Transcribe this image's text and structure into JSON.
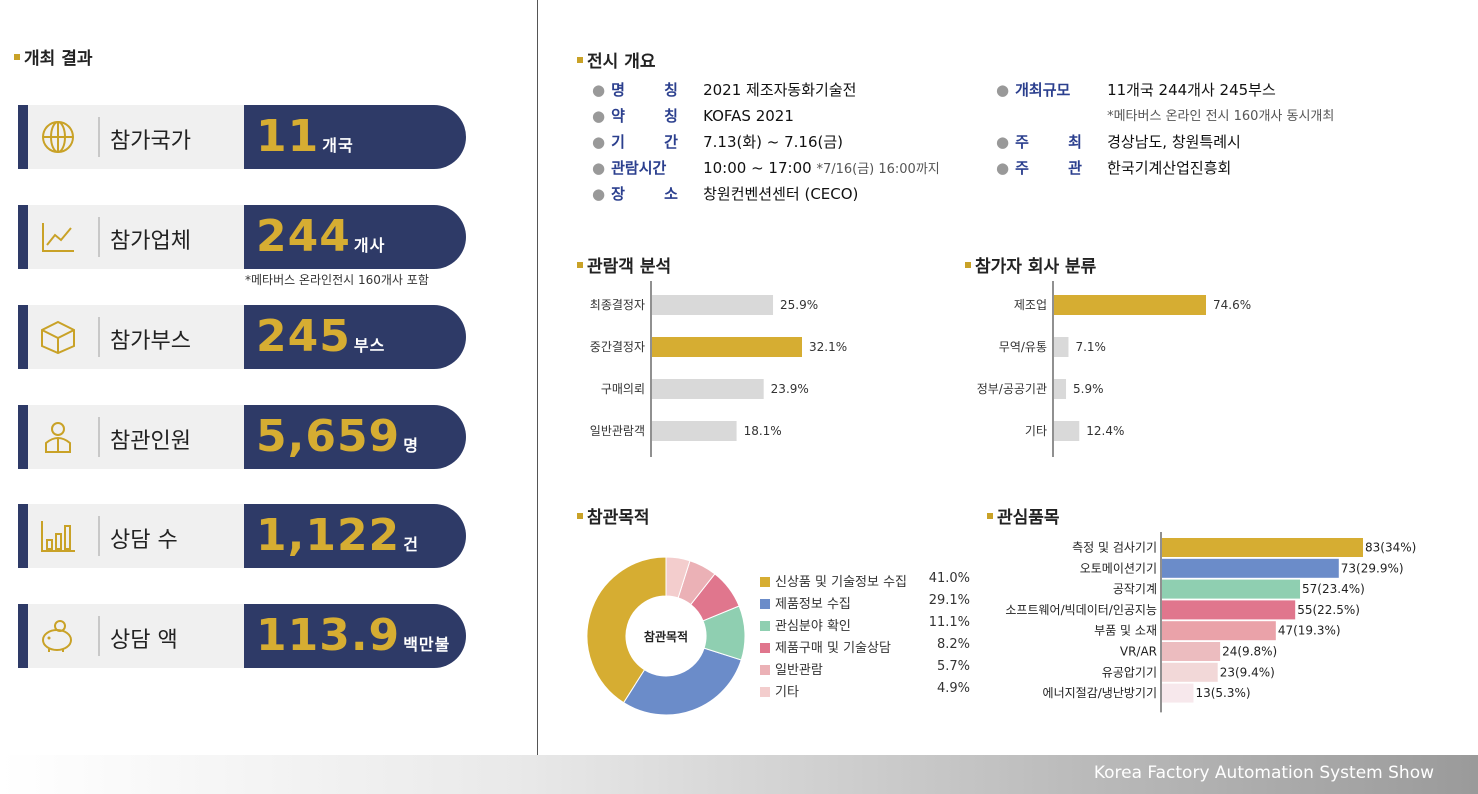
{
  "left": {
    "title": "개최 결과",
    "stats": [
      {
        "label": "참가국가",
        "value": "11",
        "unit": "개국",
        "icon": "globe-icon"
      },
      {
        "label": "참가업체",
        "value": "244",
        "unit": "개사",
        "icon": "chart-icon"
      },
      {
        "label": "참가부스",
        "value": "245",
        "unit": "부스",
        "icon": "box-icon"
      },
      {
        "label": "참관인원",
        "value": "5,659",
        "unit": "명",
        "icon": "person-icon"
      },
      {
        "label": "상담 수",
        "value": "1,122",
        "unit": "건",
        "icon": "bar-chart-icon"
      },
      {
        "label": "상담 액",
        "value": "113.9",
        "unit": "백만불",
        "icon": "piggy-bank-icon"
      }
    ],
    "company_note": "*메타버스 온라인전시 160개사 포함"
  },
  "overview": {
    "title": "전시 개요",
    "left_rows": [
      {
        "key": "명 칭",
        "value": "2021 제조자동화기술전",
        "sub": ""
      },
      {
        "key": "약 칭",
        "value": "KOFAS 2021",
        "sub": ""
      },
      {
        "key": "기 간",
        "value": "7.13(화) ~ 7.16(금)",
        "sub": ""
      },
      {
        "key": "관람시간",
        "value": "10:00 ~ 17:00",
        "sub": "*7/16(금) 16:00까지"
      },
      {
        "key": "장 소",
        "value": "창원컨벤션센터 (CECO)",
        "sub": ""
      }
    ],
    "right_rows": [
      {
        "key": "개최규모",
        "value": "11개국 244개사 245부스"
      },
      {
        "key": "",
        "value": "*메타버스 온라인 전시 160개사 동시개최"
      },
      {
        "key": "주 최",
        "value": "경상남도, 창원특례시"
      },
      {
        "key": "주 관",
        "value": "한국기계산업진흥회"
      }
    ]
  },
  "visitor_analysis": {
    "title": "관람객 분석",
    "chart_data": {
      "type": "bar",
      "orientation": "horizontal",
      "categories": [
        "최종결정자",
        "중간결정자",
        "구매의뢰",
        "일반관람객"
      ],
      "values": [
        25.9,
        32.1,
        23.9,
        18.1
      ],
      "labels": [
        "25.9%",
        "32.1%",
        "23.9%",
        "18.1%"
      ],
      "highlight_index": 1,
      "colors": {
        "normal": "#d9d9d9",
        "highlight": "#d6ad32"
      }
    }
  },
  "company_classification": {
    "title": "참가자 회사 분류",
    "chart_data": {
      "type": "bar",
      "orientation": "horizontal",
      "categories": [
        "제조업",
        "무역/유통",
        "정부/공공기관",
        "기타"
      ],
      "values": [
        74.6,
        7.1,
        5.9,
        12.4
      ],
      "labels": [
        "74.6%",
        "7.1%",
        "5.9%",
        "12.4%"
      ],
      "highlight_index": 0,
      "colors": {
        "normal": "#d9d9d9",
        "highlight": "#d6ad32"
      }
    }
  },
  "purpose": {
    "title": "참관목적",
    "center_label": "참관목적",
    "chart_data": {
      "type": "pie",
      "donut": true,
      "categories": [
        "신상품 및 기술정보 수집",
        "제품정보 수집",
        "관심분야 확인",
        "제품구매 및 기술상담",
        "일반관람",
        "기타"
      ],
      "values": [
        41.0,
        29.1,
        11.1,
        8.2,
        5.7,
        4.9
      ],
      "labels": [
        "41.0%",
        "29.1%",
        "11.1%",
        "8.2%",
        "5.7%",
        "4.9%"
      ],
      "colors": [
        "#d6ad32",
        "#6b8cc9",
        "#8fcfb1",
        "#e0768d",
        "#ebb1b6",
        "#f3cdcd"
      ]
    }
  },
  "interest": {
    "title": "관심품목",
    "chart_data": {
      "type": "bar",
      "orientation": "horizontal",
      "categories": [
        "측정 및 검사기기",
        "오토메이션기기",
        "공작기계",
        "소프트웨어/빅데이터/인공지능",
        "부품 및 소재",
        "VR/AR",
        "유공압기기",
        "에너지절감/냉난방기기"
      ],
      "values": [
        83,
        73,
        57,
        55,
        47,
        24,
        23,
        13
      ],
      "labels": [
        "83(34%)",
        "73(29.9%)",
        "57(23.4%)",
        "55(22.5%)",
        "47(19.3%)",
        "24(9.8%)",
        "23(9.4%)",
        "13(5.3%)"
      ],
      "colors": [
        "#d6ad32",
        "#6b8cc9",
        "#8fcfb1",
        "#e0768d",
        "#eaa2a9",
        "#ecbcbf",
        "#f2d8d8",
        "#f7e8ec"
      ]
    }
  },
  "footer": {
    "text": "Korea Factory Automation System Show"
  }
}
